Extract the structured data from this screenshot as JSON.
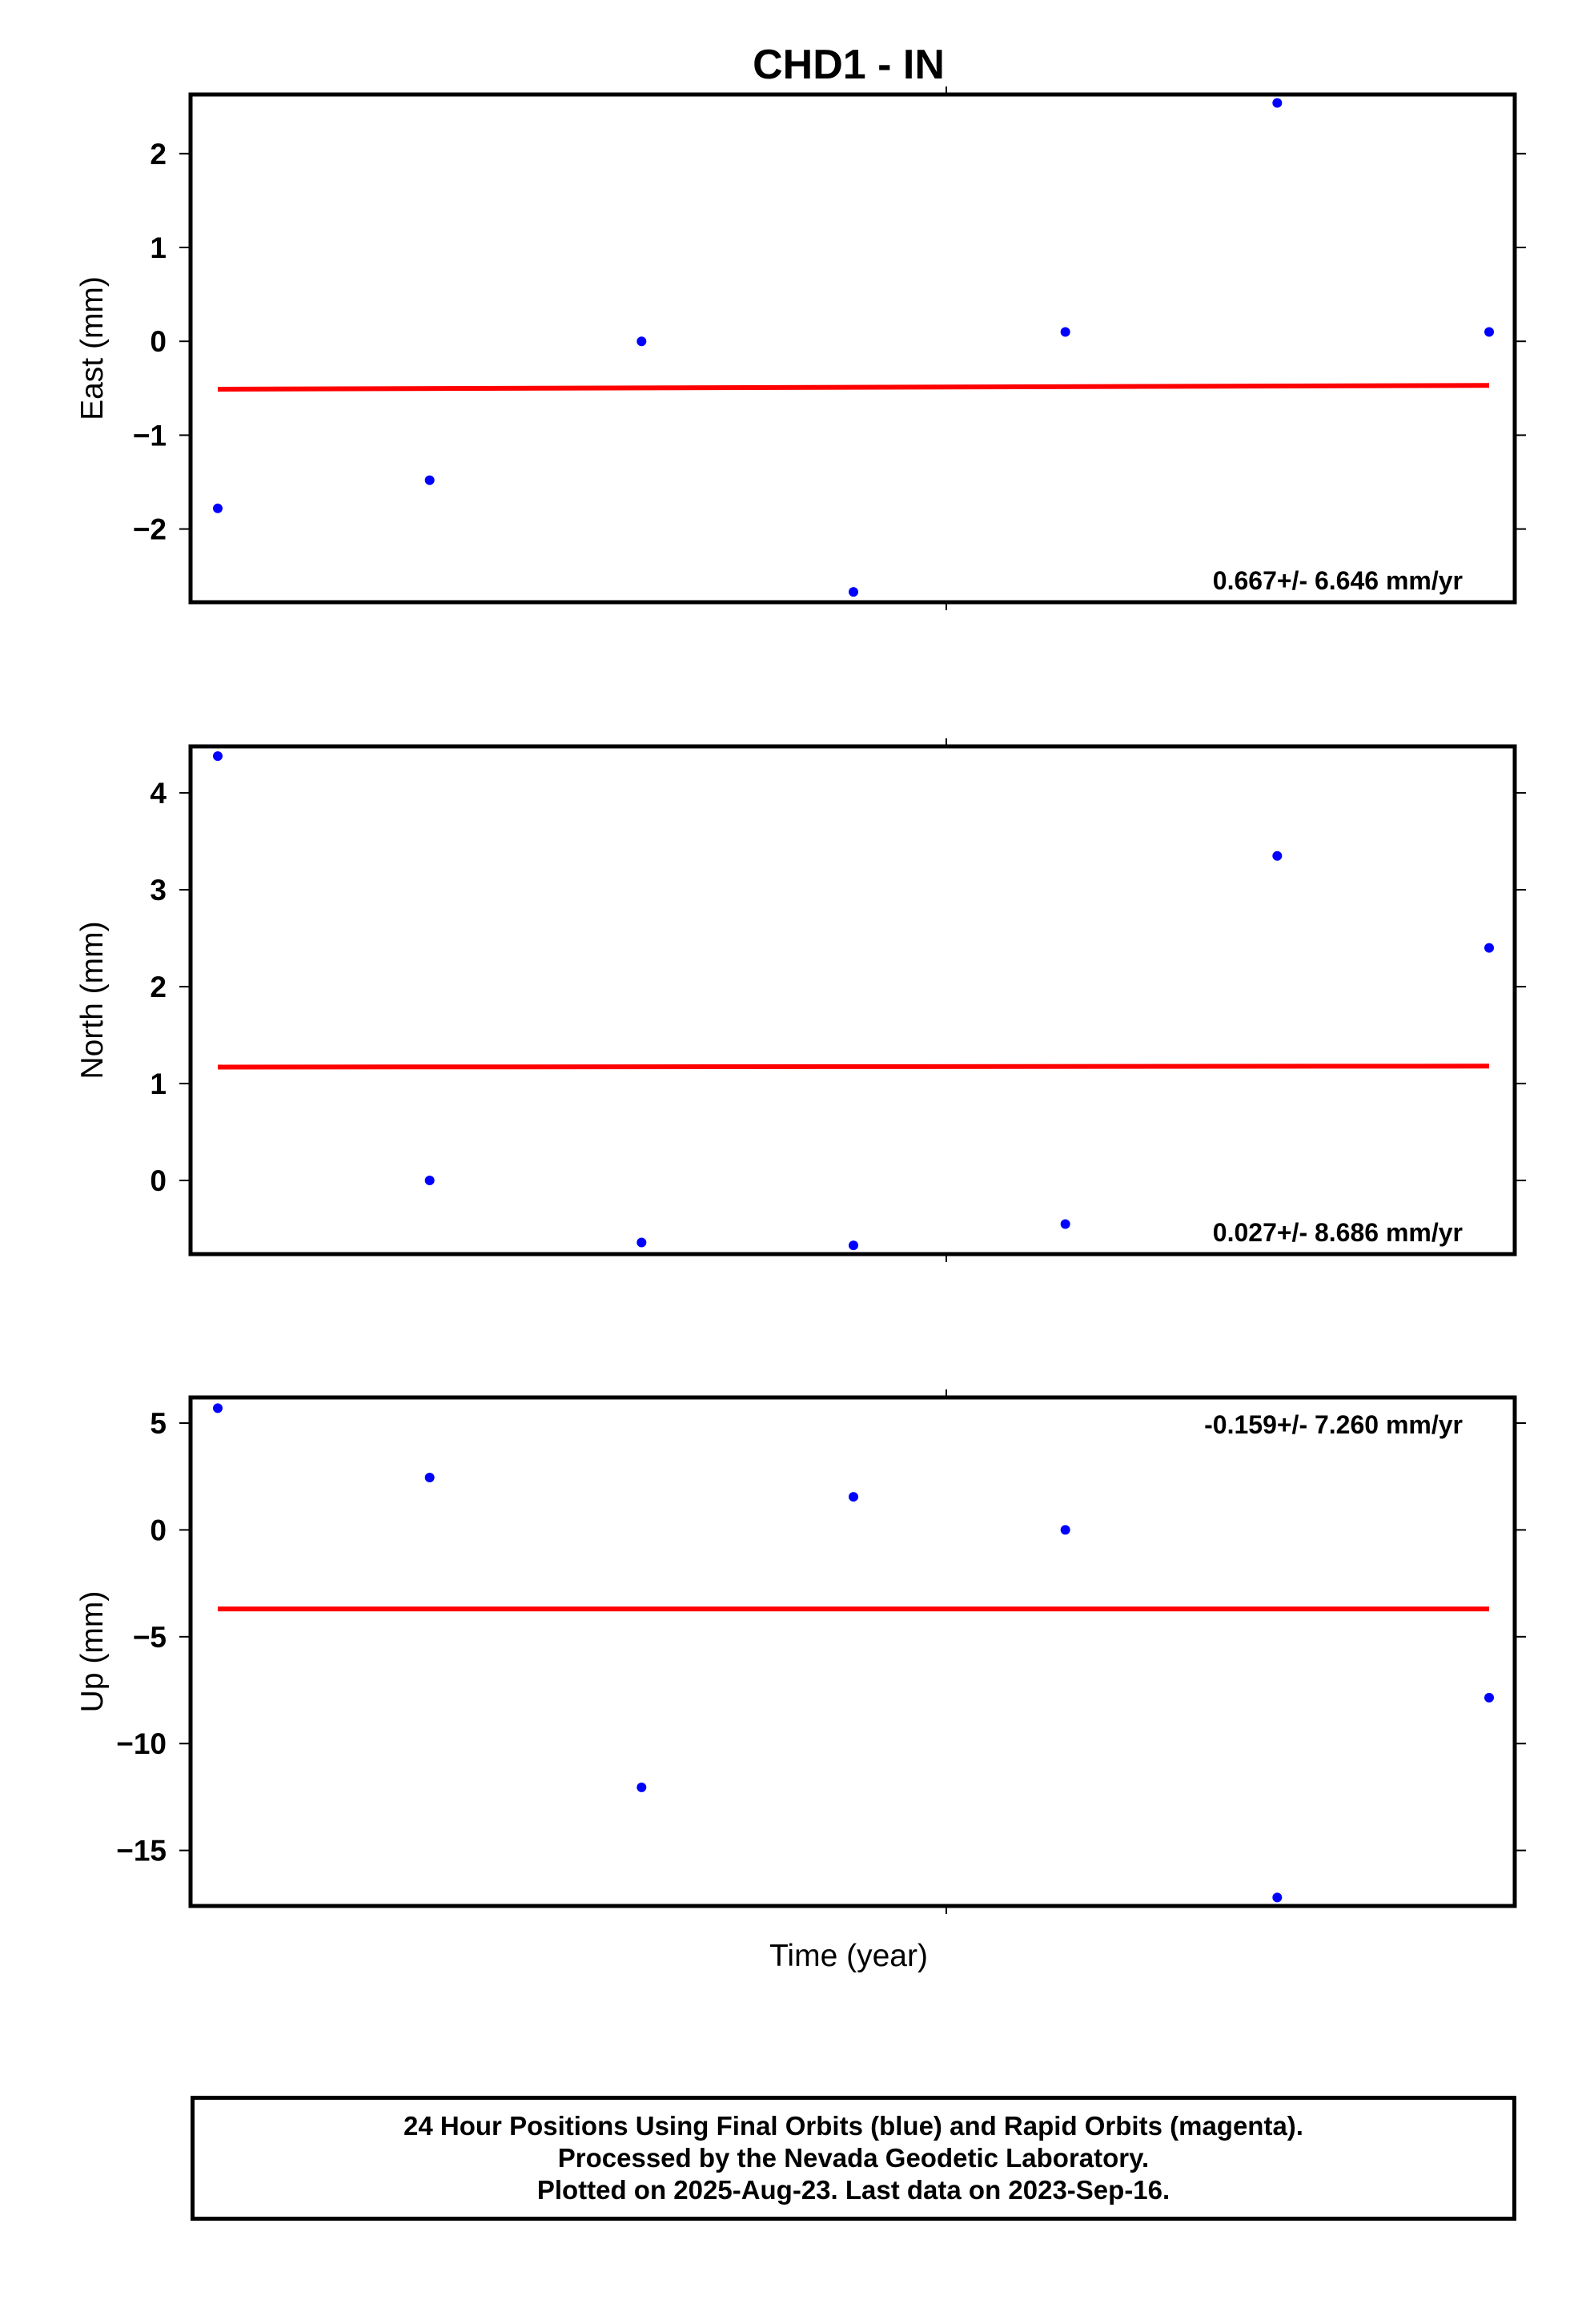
{
  "title": "CHD1 - IN",
  "xlabel": "Time (year)",
  "colors": {
    "points": "#0000ff",
    "fit": "#ff0000",
    "frame": "#000000"
  },
  "footer": {
    "line1": "24 Hour Positions Using Final Orbits (blue) and Rapid Orbits (magenta).",
    "line2": "Processed by the Nevada Geodetic Laboratory.",
    "line3": "Plotted on 2025-Aug-23. Last data on 2023-Sep-16."
  },
  "chart_data": [
    {
      "type": "scatter",
      "ylabel": "East (mm)",
      "ylim": [
        -2.78,
        2.63
      ],
      "yticks": [
        2,
        1,
        0,
        -1,
        -2
      ],
      "ytick_labels": [
        "2",
        "1",
        "0",
        "−1",
        "−2"
      ],
      "x": [
        1,
        2,
        3,
        4,
        5,
        6,
        7
      ],
      "y": [
        -1.78,
        -1.48,
        0.0,
        -2.67,
        0.1,
        2.54,
        0.1
      ],
      "fit": {
        "y_start": -0.51,
        "y_end": -0.47
      },
      "rate_text": "0.667+/- 6.646 mm/yr",
      "rate_position": "bottom-right"
    },
    {
      "type": "scatter",
      "ylabel": "North (mm)",
      "ylim": [
        -0.76,
        4.48
      ],
      "yticks": [
        4,
        3,
        2,
        1,
        0
      ],
      "ytick_labels": [
        "4",
        "3",
        "2",
        "1",
        "0"
      ],
      "x": [
        1,
        2,
        3,
        4,
        5,
        6,
        7
      ],
      "y": [
        4.38,
        0.0,
        -0.64,
        -0.67,
        -0.45,
        3.35,
        2.4
      ],
      "fit": {
        "y_start": 1.17,
        "y_end": 1.18
      },
      "rate_text": "0.027+/- 8.686 mm/yr",
      "rate_position": "bottom-right"
    },
    {
      "type": "scatter",
      "ylabel": "Up (mm)",
      "ylim": [
        -17.6,
        6.2
      ],
      "yticks": [
        5,
        0,
        -5,
        -10,
        -15
      ],
      "ytick_labels": [
        "5",
        "0",
        "−5",
        "−10",
        "−15"
      ],
      "x": [
        1,
        2,
        3,
        4,
        5,
        6,
        7
      ],
      "y": [
        5.7,
        2.45,
        -12.05,
        1.55,
        0.0,
        -17.2,
        -7.85
      ],
      "fit": {
        "y_start": -3.7,
        "y_end": -3.7
      },
      "rate_text": "-0.159+/- 7.260 mm/yr",
      "rate_position": "top-right"
    }
  ]
}
